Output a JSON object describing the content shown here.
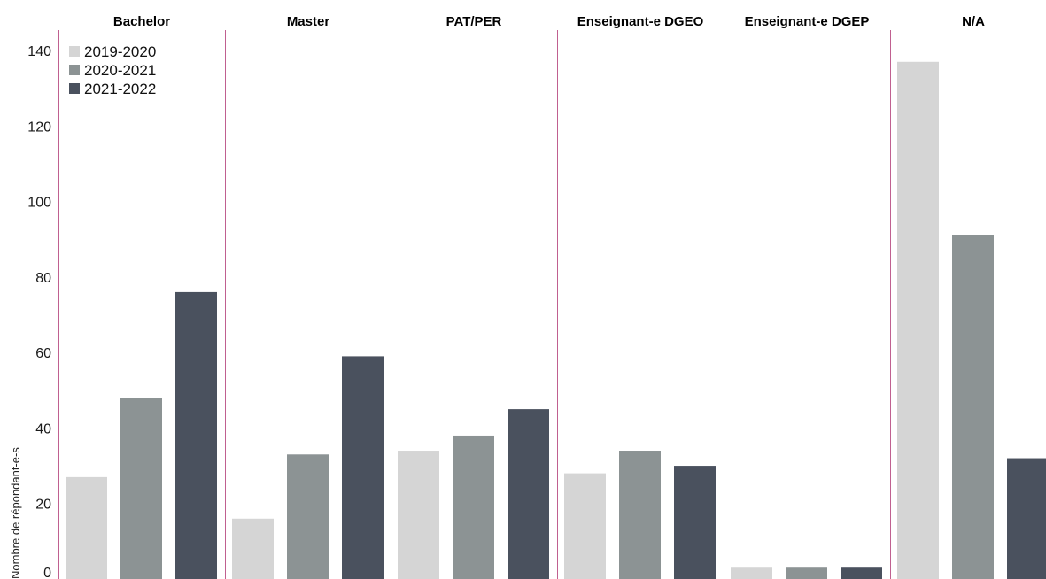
{
  "chart_data": {
    "type": "bar",
    "facets": [
      "Bachelor",
      "Master",
      "PAT/PER",
      "Enseignant-e DGEO",
      "Enseignant-e DGEP",
      "N/A"
    ],
    "series": [
      {
        "name": "2019-2020",
        "color": "#d5d5d5",
        "values": [
          27,
          16,
          34,
          28,
          3,
          137
        ]
      },
      {
        "name": "2020-2021",
        "color": "#8c9394",
        "values": [
          48,
          33,
          38,
          34,
          3,
          91
        ]
      },
      {
        "name": "2021-2022",
        "color": "#4a515e",
        "values": [
          76,
          59,
          45,
          30,
          3,
          32
        ]
      }
    ],
    "ylabel": "Nombre de répondant-e-s",
    "xlabel": "",
    "ylim": [
      0,
      140
    ],
    "yticks": [
      0,
      20,
      40,
      60,
      80,
      100,
      120,
      140
    ],
    "legend_position": "top-left",
    "grid": false,
    "separator_color": "#c06090"
  }
}
